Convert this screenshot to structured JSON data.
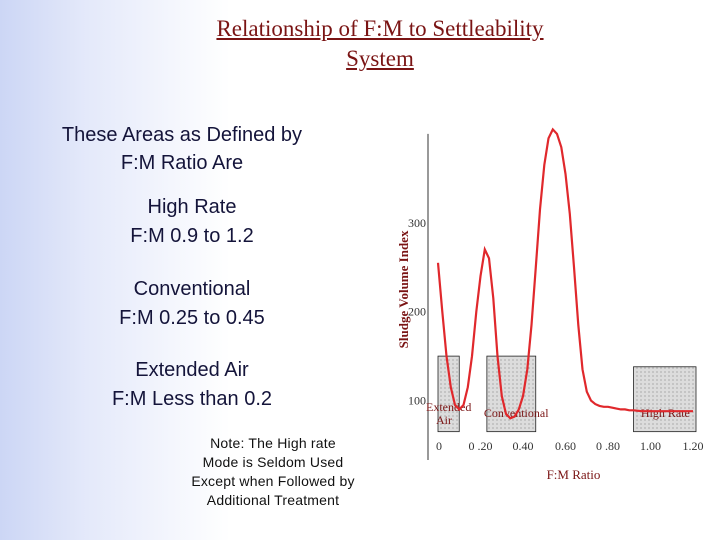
{
  "slide": {
    "title_line1": "Relationship of F:M to Settleability",
    "title_line2": "System",
    "heading_line1": "These Areas as Defined by",
    "heading_line2": "F:M Ratio Are",
    "high_rate_line1": "High Rate",
    "high_rate_line2": "F:M 0.9 to 1.2",
    "conventional_line1": "Conventional",
    "conventional_line2": "F:M 0.25 to 0.45",
    "extended_line1": "Extended Air",
    "extended_line2": "F:M Less than 0.2",
    "note_line1": "Note:  The High  rate",
    "note_line2": "Mode is Seldom Used",
    "note_line3": "Except when Followed by",
    "note_line4": "Additional Treatment"
  },
  "chart_data": {
    "type": "line",
    "ylabel": "Sludge Volume Index",
    "xlabel": "F:M  Ratio",
    "x_ticks": [
      "0",
      "0 .20",
      "0.40",
      "0.60",
      "0 .80",
      "1.00",
      "1.20"
    ],
    "y_ticks": [
      "100",
      "200",
      "300"
    ],
    "xlim": [
      0,
      1.2
    ],
    "ylim": [
      50,
      410
    ],
    "series": [
      {
        "x": [
          0.0,
          0.02,
          0.04,
          0.06,
          0.08,
          0.1,
          0.12,
          0.14,
          0.16,
          0.18,
          0.2,
          0.22,
          0.24,
          0.26,
          0.28,
          0.3,
          0.32,
          0.34,
          0.36,
          0.38,
          0.4,
          0.42,
          0.44,
          0.46,
          0.48,
          0.5,
          0.52,
          0.54,
          0.56,
          0.58,
          0.6,
          0.62,
          0.64,
          0.66,
          0.68,
          0.7,
          0.72,
          0.74,
          0.76,
          0.78,
          0.8,
          0.82,
          0.84,
          0.86,
          0.88,
          0.9,
          0.92,
          0.96,
          1.0,
          1.04,
          1.08,
          1.12,
          1.16,
          1.2
        ],
        "y": [
          255,
          200,
          150,
          115,
          95,
          90,
          95,
          115,
          150,
          200,
          240,
          270,
          260,
          215,
          150,
          105,
          85,
          80,
          82,
          90,
          105,
          135,
          185,
          250,
          315,
          365,
          395,
          405,
          400,
          385,
          355,
          310,
          250,
          185,
          135,
          110,
          100,
          96,
          94,
          93,
          93,
          92,
          91,
          90,
          90,
          89,
          89,
          88,
          88,
          88,
          88,
          88,
          88,
          88
        ]
      }
    ],
    "regions": [
      {
        "label": "Extended Air",
        "x_start": 0.0,
        "x_end": 0.1,
        "y_top": 150
      },
      {
        "label": "Conventional",
        "x_start": 0.23,
        "x_end": 0.46,
        "y_top": 150
      },
      {
        "label": "High Rate",
        "x_start": 0.92,
        "x_end": 1.22,
        "y_top": 138
      }
    ],
    "colors": {
      "line": "#e0282c",
      "region_fill": "#dcdcdc",
      "text": "#7a1414",
      "axis": "#333333"
    }
  }
}
